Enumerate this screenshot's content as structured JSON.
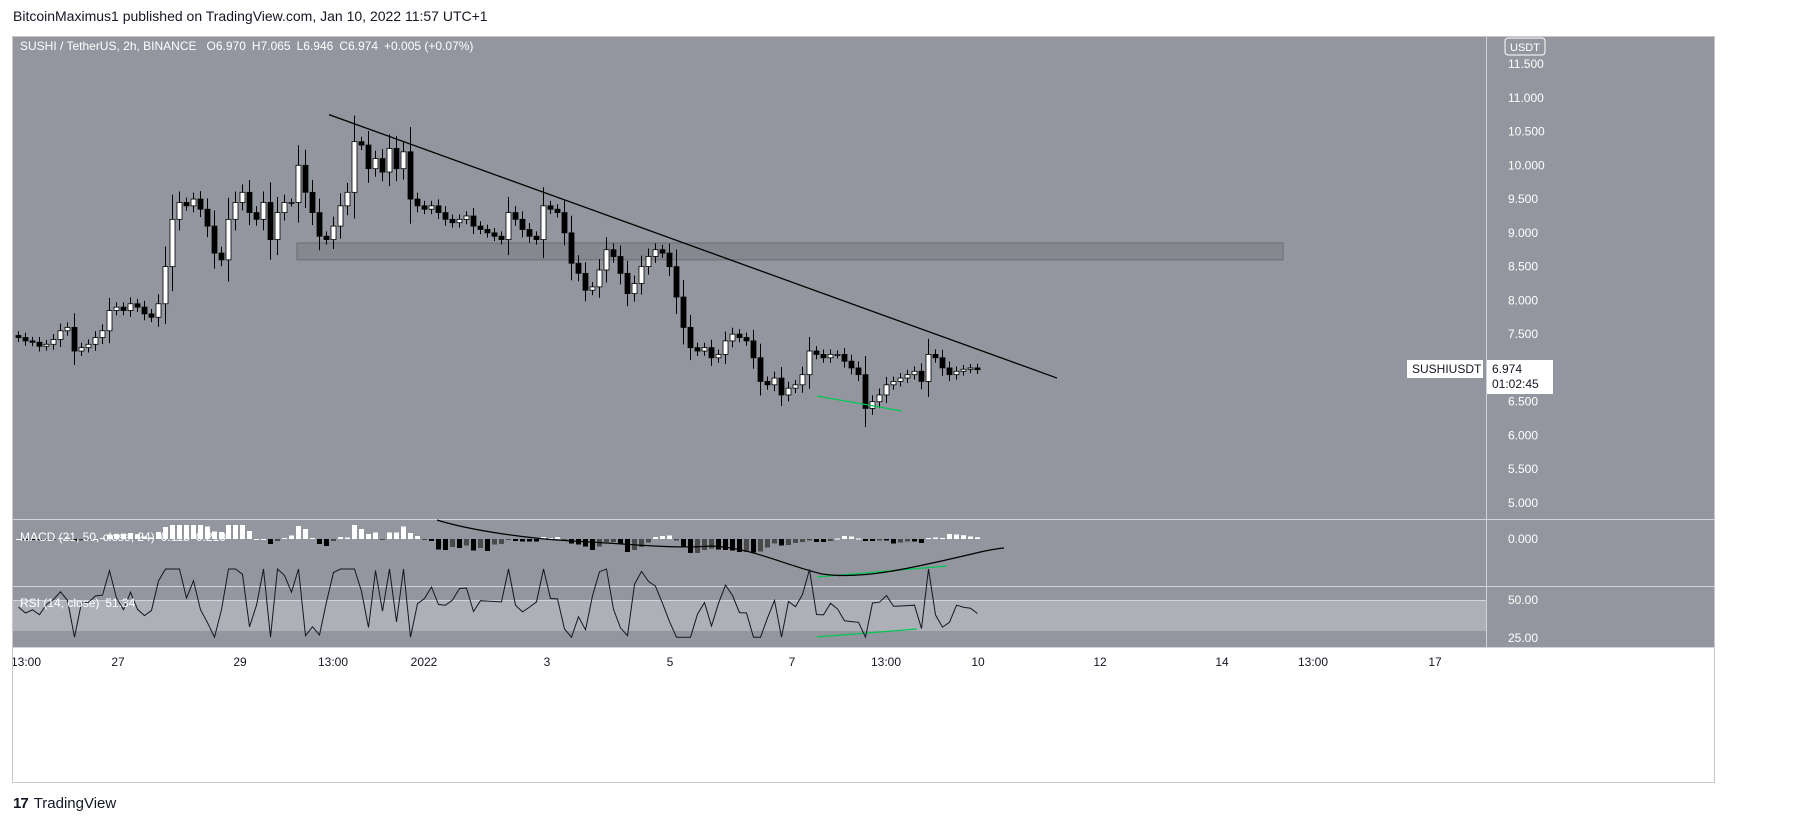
{
  "header": {
    "published": "BitcoinMaximus1 published on TradingView.com, Jan 10, 2022 11:57 UTC+1"
  },
  "legend": {
    "symbol": "SUSHI / TetherUS, 2h, BINANCE",
    "o_label": "O",
    "o": "6.970",
    "h_label": "H",
    "h": "7.065",
    "l_label": "L",
    "l": "6.946",
    "c_label": "C",
    "c": "6.974",
    "change": "+0.005 (+0.07%)"
  },
  "currency": "USDT",
  "last_price": {
    "name": "SUSHIUSDT",
    "value": "6.974",
    "countdown": "01:02:45"
  },
  "macd": {
    "label": "MACD (21, 50, close, 24)",
    "v1": "0.115",
    "v2": "0.210",
    "axis_tick": "0.000"
  },
  "rsi": {
    "label": "RSI (14, close)",
    "value": "51.34",
    "ticks": [
      "50.00",
      "25.00"
    ]
  },
  "footer": {
    "brand": "TradingView",
    "logo": "17"
  },
  "chart_data": {
    "type": "candlestick",
    "title": "SUSHI / TetherUS, 2h, BINANCE",
    "y_ticks": [
      "11.500",
      "11.000",
      "10.500",
      "10.000",
      "9.500",
      "9.000",
      "8.500",
      "8.000",
      "7.500",
      "7.000",
      "6.500",
      "6.000",
      "5.500",
      "5.000"
    ],
    "ylim": [
      4.75,
      11.7
    ],
    "x_ticks": [
      "13:00",
      "27",
      "29",
      "13:00",
      "2022",
      "3",
      "5",
      "7",
      "13:00",
      "10",
      "12",
      "14",
      "13:00",
      "17"
    ],
    "closes": [
      7.45,
      7.4,
      7.38,
      7.32,
      7.35,
      7.42,
      7.55,
      7.6,
      7.25,
      7.3,
      7.35,
      7.45,
      7.55,
      7.85,
      7.9,
      7.85,
      7.95,
      7.9,
      7.8,
      7.75,
      7.95,
      8.5,
      9.2,
      9.45,
      9.4,
      9.5,
      9.35,
      9.1,
      8.7,
      8.6,
      9.2,
      9.45,
      9.6,
      9.3,
      9.2,
      9.45,
      8.9,
      9.3,
      9.45,
      9.45,
      10.0,
      9.6,
      9.3,
      8.95,
      8.9,
      9.1,
      9.4,
      9.6,
      10.35,
      10.3,
      9.95,
      10.1,
      9.9,
      10.25,
      9.95,
      10.2,
      9.5,
      9.4,
      9.35,
      9.4,
      9.3,
      9.2,
      9.15,
      9.2,
      9.25,
      9.1,
      9.05,
      9.0,
      8.95,
      8.9,
      9.3,
      9.2,
      9.05,
      8.95,
      8.9,
      9.4,
      9.35,
      9.3,
      9.0,
      8.55,
      8.4,
      8.15,
      8.2,
      8.45,
      8.75,
      8.65,
      8.4,
      8.1,
      8.25,
      8.5,
      8.65,
      8.75,
      8.7,
      8.5,
      8.05,
      7.6,
      7.3,
      7.25,
      7.3,
      7.15,
      7.2,
      7.4,
      7.5,
      7.45,
      7.4,
      7.15,
      6.8,
      6.75,
      6.85,
      6.6,
      6.7,
      6.75,
      6.9,
      7.25,
      7.2,
      7.15,
      7.2,
      7.2,
      7.1,
      7.0,
      6.9,
      6.4,
      6.5,
      6.6,
      6.75,
      6.8,
      6.85,
      6.9,
      6.95,
      6.8,
      7.2,
      7.15,
      7.0,
      6.9,
      6.95,
      6.98,
      7.0,
      6.974
    ],
    "resistance_zone": [
      8.6,
      8.85
    ],
    "trendline": {
      "from": [
        "2021-12-30 13:00",
        10.75
      ],
      "to": [
        "2022-01-11",
        6.85
      ]
    },
    "divergence_color": "#00c853"
  },
  "colors": {
    "background": "#94969f",
    "candle_up": "#ffffff",
    "candle_down": "#000000",
    "rsi_band": "#aeb0b7"
  }
}
